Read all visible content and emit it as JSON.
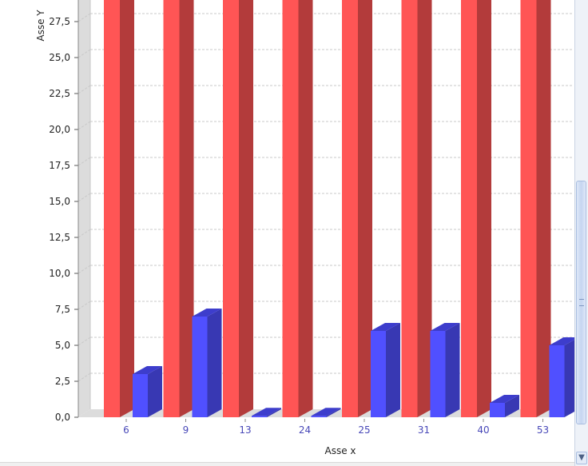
{
  "chart_data": {
    "type": "bar",
    "title": "",
    "xlabel": "Asse x",
    "ylabel": "Asse Y",
    "categories": [
      "6",
      "9",
      "13",
      "24",
      "25",
      "31",
      "40",
      "53"
    ],
    "series": [
      {
        "values": [
          29,
          29,
          29,
          29,
          29,
          29,
          29,
          29
        ]
      },
      {
        "values": [
          3.0,
          7.0,
          0.1,
          0.1,
          6.0,
          6.0,
          1.0,
          5.0
        ]
      }
    ],
    "ylim": [
      0,
      28.9
    ],
    "yticks": [
      "0,0",
      "2,5",
      "5,0",
      "7,5",
      "10,0",
      "12,5",
      "15,0",
      "17,5",
      "20,0",
      "22,5",
      "25,0",
      "27,5"
    ],
    "grid": true,
    "legend": "none",
    "colors": {
      "series_1": "#ff5555",
      "series_1_side": "#b33b3b",
      "series_2": "#5050ff",
      "series_2_side": "#3838b3",
      "series_2_top": "#3d3dcc",
      "tick_label": "#4848b8",
      "axis_text": "#222222"
    }
  },
  "scrollbar": {
    "down_icon": "chevron-down-icon"
  }
}
